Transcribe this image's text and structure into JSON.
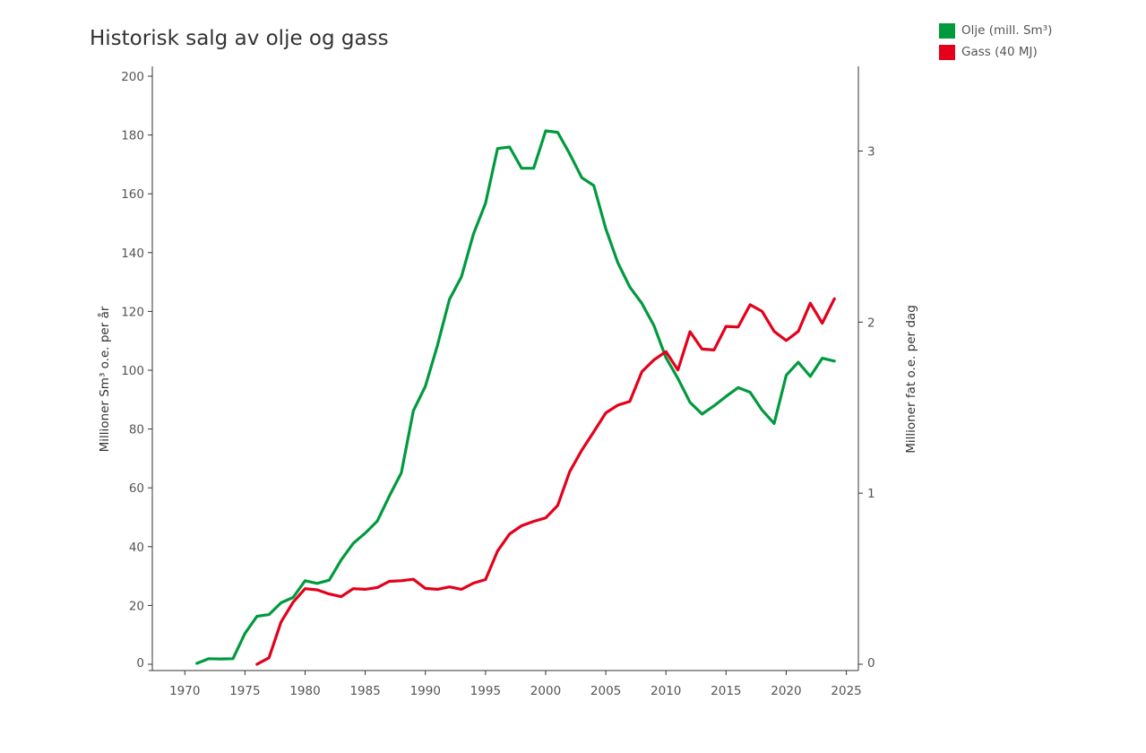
{
  "chart_data": {
    "type": "line",
    "title": "Historisk salg av olje og gass",
    "ylabel": "Millioner Sm³ o.e. per år",
    "ylabel_right": "Millioner fat o.e. per dag",
    "xlim": [
      1967,
      2026
    ],
    "ylim": [
      0,
      200
    ],
    "ylim_right": [
      0,
      3.4375
    ],
    "x_ticks": [
      1970,
      1975,
      1980,
      1985,
      1990,
      1995,
      2000,
      2005,
      2010,
      2015,
      2020,
      2025
    ],
    "y_ticks": [
      0,
      20,
      40,
      60,
      80,
      100,
      120,
      140,
      160,
      180,
      200
    ],
    "y_ticks_right": [
      0,
      1,
      2,
      3
    ],
    "grid": false,
    "legend_position": "top-right",
    "series": [
      {
        "name": "Olje (mill. Sm³)",
        "color": "#009a3e",
        "x": [
          1971,
          1972,
          1973,
          1974,
          1975,
          1976,
          1977,
          1978,
          1979,
          1980,
          1981,
          1982,
          1983,
          1984,
          1985,
          1986,
          1987,
          1988,
          1989,
          1990,
          1991,
          1992,
          1993,
          1994,
          1995,
          1996,
          1997,
          1998,
          1999,
          2000,
          2001,
          2002,
          2003,
          2004,
          2005,
          2006,
          2007,
          2008,
          2009,
          2010,
          2011,
          2012,
          2013,
          2014,
          2015,
          2016,
          2017,
          2018,
          2019,
          2020,
          2021,
          2022,
          2023,
          2024
        ],
        "values": [
          0.3,
          1.9,
          1.8,
          1.9,
          10.5,
          16.3,
          16.9,
          20.9,
          22.7,
          28.4,
          27.5,
          28.6,
          35.5,
          41.1,
          44.6,
          48.7,
          57.2,
          65.1,
          86.2,
          94.5,
          108.4,
          124.1,
          131.8,
          146.3,
          156.8,
          175.4,
          175.9,
          168.7,
          168.7,
          181.4,
          180.9,
          173.6,
          165.5,
          162.8,
          148.1,
          136.6,
          128.3,
          122.7,
          115.2,
          104.3,
          97.2,
          89.1,
          85.1,
          87.9,
          91.1,
          94.1,
          92.5,
          86.4,
          81.9,
          98.3,
          102.7,
          97.9,
          104.1,
          103.1
        ]
      },
      {
        "name": "Gass (40 MJ)",
        "color": "#e4001b",
        "x": [
          1976,
          1977,
          1978,
          1979,
          1980,
          1981,
          1982,
          1983,
          1984,
          1985,
          1986,
          1987,
          1988,
          1989,
          1990,
          1991,
          1992,
          1993,
          1994,
          1995,
          1996,
          1997,
          1998,
          1999,
          2000,
          2001,
          2002,
          2003,
          2004,
          2005,
          2006,
          2007,
          2008,
          2009,
          2010,
          2011,
          2012,
          2013,
          2014,
          2015,
          2016,
          2017,
          2018,
          2019,
          2020,
          2021,
          2022,
          2023,
          2024
        ],
        "values": [
          0.0,
          2.2,
          14.4,
          21.1,
          25.7,
          25.3,
          23.9,
          23.0,
          25.7,
          25.5,
          26.1,
          28.2,
          28.4,
          28.9,
          25.8,
          25.5,
          26.3,
          25.5,
          27.6,
          28.8,
          38.5,
          44.3,
          47.1,
          48.6,
          49.8,
          54.0,
          65.5,
          72.8,
          79.1,
          85.5,
          88.1,
          89.4,
          99.5,
          103.5,
          106.3,
          100.1,
          113.1,
          107.2,
          106.9,
          114.9,
          114.7,
          122.3,
          120.0,
          113.2,
          110.1,
          113.2,
          122.8,
          116.0,
          124.3
        ]
      }
    ]
  }
}
